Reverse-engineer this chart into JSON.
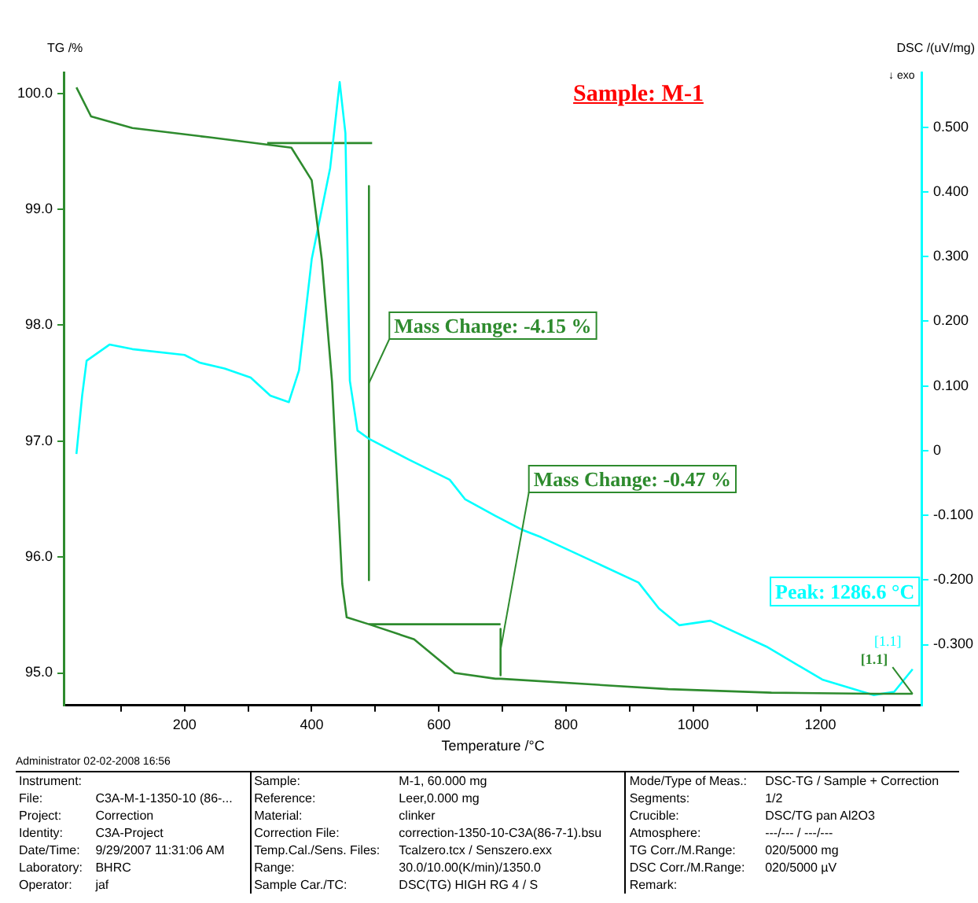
{
  "chart_data": {
    "type": "line",
    "title": "Sample: M-1",
    "xlabel": "Temperature /°C",
    "ylabel": "TG /%",
    "y2label": "DSC /(uV/mg)",
    "xlim": [
      10,
      1360
    ],
    "xticks": [
      {
        "value": 100,
        "label": null
      },
      200,
      {
        "value": 300,
        "label": null
      },
      400,
      {
        "value": 500,
        "label": null
      },
      600,
      {
        "value": 700,
        "label": null
      },
      800,
      {
        "value": 900,
        "label": null
      },
      1000,
      {
        "value": 1100,
        "label": null
      },
      1200,
      {
        "value": 1300,
        "label": null
      }
    ],
    "ylim": [
      94.72,
      100.18
    ],
    "yticks": [
      {
        "value": 95,
        "label": "95.0"
      },
      {
        "value": 96,
        "label": "96.0"
      },
      {
        "value": 97,
        "label": "97.0"
      },
      {
        "value": 98,
        "label": "98.0"
      },
      {
        "value": 99,
        "label": "99.0"
      },
      {
        "value": 100,
        "label": "100.0"
      }
    ],
    "y2lim": [
      -0.394,
      0.585
    ],
    "y2ticks": [
      {
        "value": -0.3,
        "label": "-0.300"
      },
      {
        "value": -0.2,
        "label": "-0.200"
      },
      {
        "value": -0.1,
        "label": "-0.100"
      },
      0,
      {
        "value": 0.1,
        "label": "0.100"
      },
      {
        "value": 0.2,
        "label": "0.200"
      },
      {
        "value": 0.3,
        "label": "0.300"
      },
      {
        "value": 0.4,
        "label": "0.400"
      },
      {
        "value": 0.5,
        "label": "0.500"
      }
    ],
    "grid": false,
    "legend": false,
    "marker": "none",
    "line_style": "solid",
    "series": [
      {
        "type": "line",
        "color": "#2e8b2e",
        "x": [
          30,
          53,
          118,
          239,
          368,
          400,
          416,
          432,
          448,
          455,
          490,
          561,
          625,
          689,
          697,
          961,
          1123,
          1284,
          1345
        ],
        "values": [
          100.05,
          99.8,
          99.7,
          99.62,
          99.53,
          99.25,
          98.56,
          97.51,
          95.77,
          95.48,
          95.42,
          95.29,
          95.0,
          94.95,
          94.95,
          94.86,
          94.83,
          94.82,
          94.82
        ]
      },
      {
        "type": "line",
        "color": "#00ffff",
        "axis": "y2",
        "x": [
          30,
          39,
          46,
          82,
          118,
          200,
          224,
          263,
          304,
          335,
          364,
          380,
          400,
          429,
          444,
          453,
          460,
          472,
          489,
          553,
          617,
          641,
          689,
          730,
          761,
          914,
          946,
          978,
          1027,
          1115,
          1203,
          1284,
          1316,
          1345
        ],
        "values": [
          -0.005,
          0.085,
          0.139,
          0.164,
          0.157,
          0.148,
          0.136,
          0.127,
          0.113,
          0.085,
          0.075,
          0.124,
          0.296,
          0.437,
          0.57,
          0.491,
          0.108,
          0.031,
          0.019,
          -0.014,
          -0.045,
          -0.075,
          -0.101,
          -0.122,
          -0.134,
          -0.204,
          -0.244,
          -0.27,
          -0.263,
          -0.303,
          -0.354,
          -0.378,
          -0.373,
          -0.338
        ]
      },
      {
        "type": "line",
        "color": "#2e8b2e",
        "x": [
          330,
          495
        ],
        "values": [
          99.57,
          99.57
        ]
      },
      {
        "type": "line",
        "color": "#2e8b2e",
        "x": [
          490,
          490
        ],
        "values": [
          99.2,
          95.8
        ]
      },
      {
        "type": "line",
        "color": "#2e8b2e",
        "x": [
          490,
          697
        ],
        "values": [
          95.42,
          95.42
        ]
      },
      {
        "type": "line",
        "color": "#2e8b2e",
        "x": [
          697,
          697
        ],
        "values": [
          95.38,
          94.98
        ]
      }
    ],
    "annotations": [
      {
        "text": "Mass Change: -4.15 %",
        "x": 490,
        "y": 97.5
      },
      {
        "text": "Mass Change: -0.47 %",
        "x": 697,
        "y": 95.2
      },
      {
        "text": "[1.1]",
        "x": 1345,
        "y": 94.82
      },
      "↓ exo",
      "Peak: 1286.6 °C",
      "[1.1]",
      "Administrator 02-02-2008 16:56",
      "Instrument:",
      "Sample:",
      "M-1, 60.000 mg",
      "Mode/Type of Meas.:",
      "DSC-TG / Sample + Correction",
      "File:",
      "C3A-M-1-1350-10 (86-...",
      "Reference:",
      "Leer,0.000 mg",
      "Segments:",
      "1/2",
      "Project:",
      "Correction",
      "Material:",
      "clinker",
      "Crucible:",
      "DSC/TG pan Al2O3",
      "Identity:",
      "C3A-Project",
      "Correction File:",
      "correction-1350-10-C3A(86-7-1).bsu",
      "Atmosphere:",
      "---/--- / ---/---",
      "Date/Time:",
      "9/29/2007 11:31:06 AM",
      "Temp.Cal./Sens. Files:",
      "Tcalzero.tcx / Senszero.exx",
      "TG Corr./M.Range:",
      "020/5000 mg",
      "Laboratory:",
      "BHRC",
      "Range:",
      "30.0/10.00(K/min)/1350.0",
      "DSC Corr./M.Range:",
      "020/5000 µV",
      "Operator:",
      "jaf",
      "Sample Car./TC:",
      "DSC(TG) HIGH RG 4 / S",
      "Remark:"
    ]
  }
}
